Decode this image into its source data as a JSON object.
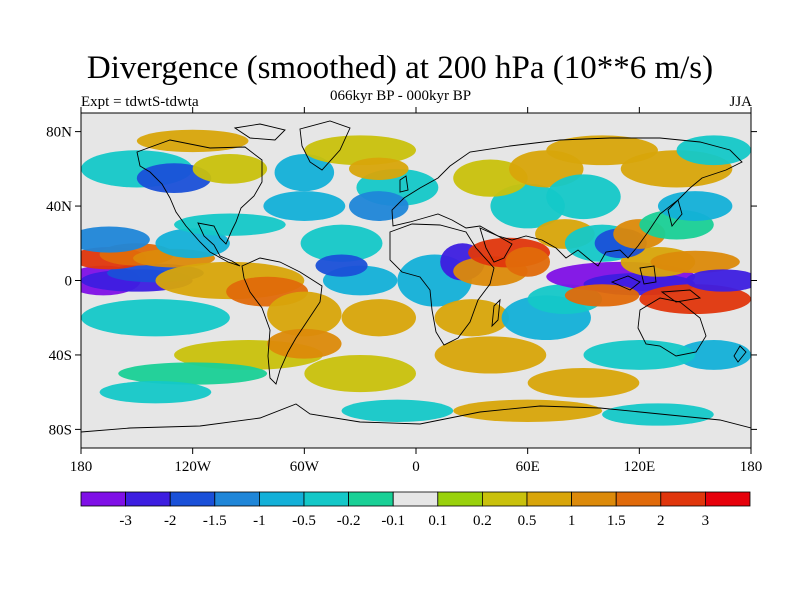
{
  "header": {
    "title": "Divergence (smoothed) at 200 hPa (10**6 m/s)",
    "subtitle": "066kyr BP - 000kyr BP",
    "left_label": "Expt = tdwtS-tdwta",
    "right_label": "JJA"
  },
  "map": {
    "lat_ticks": [
      {
        "value": 80,
        "label": "80N"
      },
      {
        "value": 40,
        "label": "40N"
      },
      {
        "value": 0,
        "label": "0"
      },
      {
        "value": -40,
        "label": "40S"
      },
      {
        "value": -80,
        "label": "80S"
      }
    ],
    "lon_ticks": [
      {
        "value": -180,
        "label": "180"
      },
      {
        "value": -120,
        "label": "120W"
      },
      {
        "value": -60,
        "label": "60W"
      },
      {
        "value": 0,
        "label": "0"
      },
      {
        "value": 60,
        "label": "60E"
      },
      {
        "value": 120,
        "label": "120E"
      },
      {
        "value": 180,
        "label": "180"
      }
    ],
    "lon_range": [
      -180,
      180
    ],
    "lat_range": [
      -90,
      90
    ],
    "background_color": "#e6e6e6"
  },
  "colorbar": {
    "colors": [
      "#7f10e6",
      "#3d1ee0",
      "#1a50d8",
      "#1f86d8",
      "#13b0d8",
      "#14c8c8",
      "#19d096",
      "#e6e6e6",
      "#99d10c",
      "#c9c10c",
      "#d8a50a",
      "#dc8a0a",
      "#e06a0a",
      "#e0360c",
      "#e6000b"
    ],
    "labels": [
      "-3",
      "-2",
      "-1.5",
      "-1",
      "-0.5",
      "-0.2",
      "-0.1",
      "0.1",
      "0.2",
      "0.5",
      "1",
      "1.5",
      "2",
      "3"
    ]
  }
}
